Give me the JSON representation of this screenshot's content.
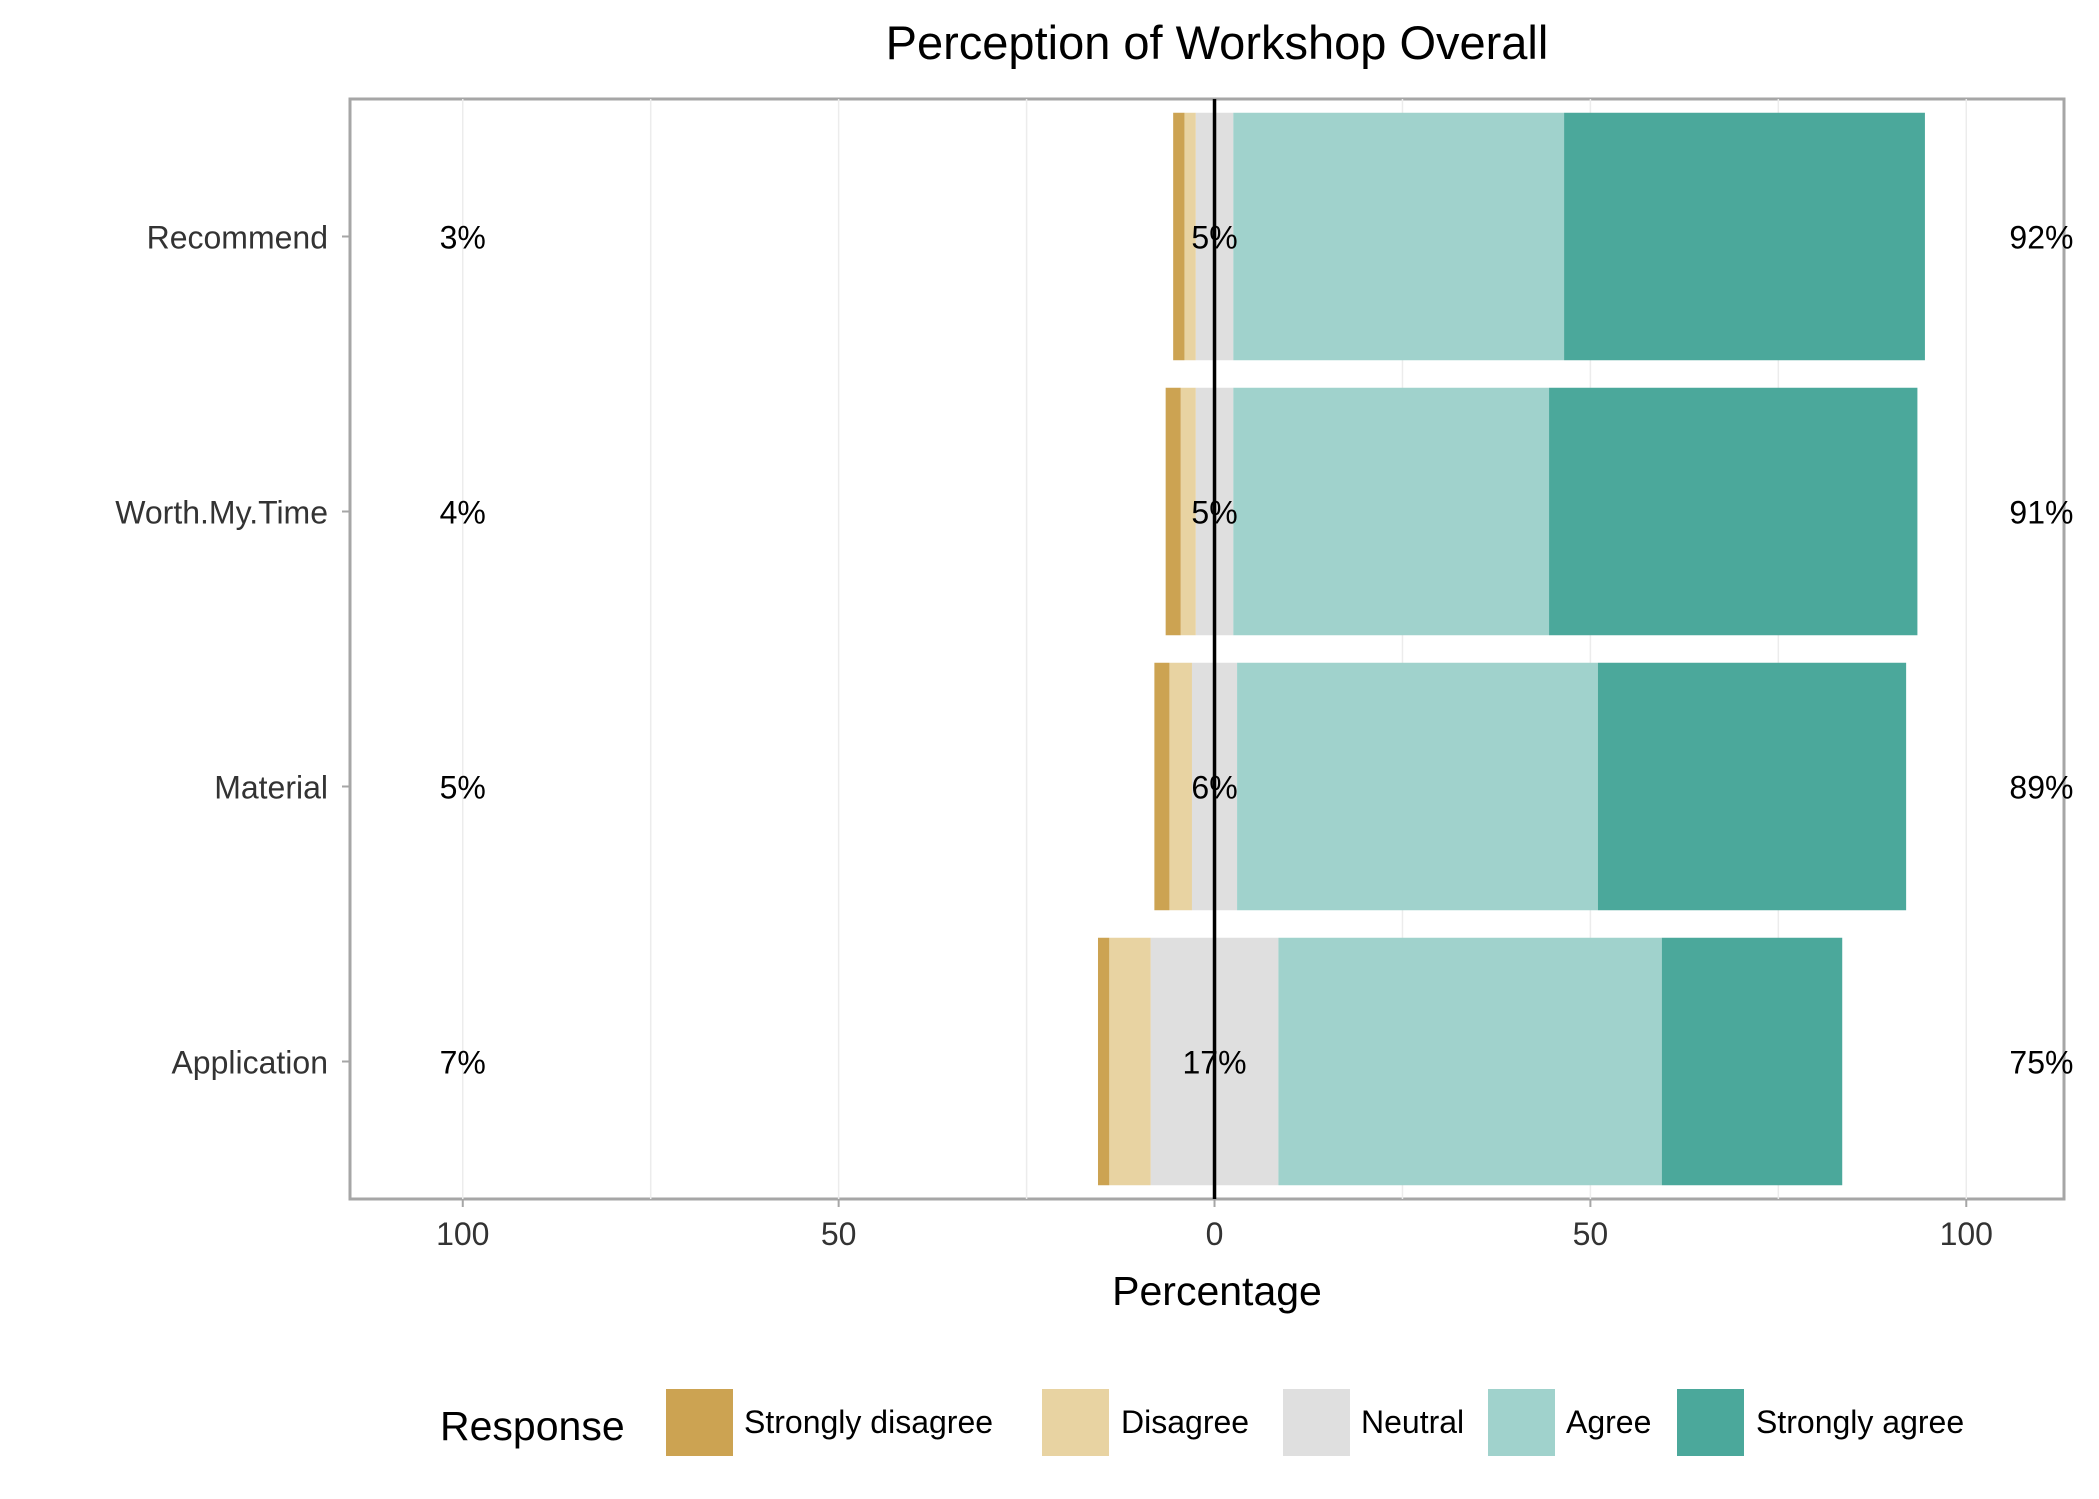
{
  "chart_data": {
    "type": "bar",
    "title": "Perception of Workshop Overall",
    "xlabel": "Percentage",
    "ylabel": "",
    "xlim": [
      -115,
      113
    ],
    "x_ticks": [
      -100,
      -50,
      0,
      50,
      100
    ],
    "x_tick_labels": [
      "100",
      "50",
      "0",
      "50",
      "100"
    ],
    "grid": true,
    "legend_position": "bottom",
    "legend_title": "Response",
    "categories": [
      "Recommend",
      "Worth.My.Time",
      "Material",
      "Application"
    ],
    "series": [
      {
        "name": "Strongly disagree",
        "color": "#CCA352",
        "values": [
          1.5,
          2.0,
          2.0,
          1.5
        ]
      },
      {
        "name": "Disagree",
        "color": "#E8D3A2",
        "values": [
          1.5,
          2.0,
          3.0,
          5.5
        ]
      },
      {
        "name": "Neutral",
        "color": "#DFDFDF",
        "values": [
          5.0,
          5.0,
          6.0,
          17.0
        ]
      },
      {
        "name": "Agree",
        "color": "#A0D2CC",
        "values": [
          44.0,
          42.0,
          48.0,
          51.0
        ]
      },
      {
        "name": "Strongly agree",
        "color": "#4BA89B",
        "values": [
          48.0,
          49.0,
          41.0,
          24.0
        ]
      }
    ],
    "left_labels": [
      "3%",
      "4%",
      "5%",
      "7%"
    ],
    "center_labels": [
      "5%",
      "5%",
      "6%",
      "17%"
    ],
    "right_labels": [
      "92%",
      "91%",
      "89%",
      "75%"
    ]
  }
}
